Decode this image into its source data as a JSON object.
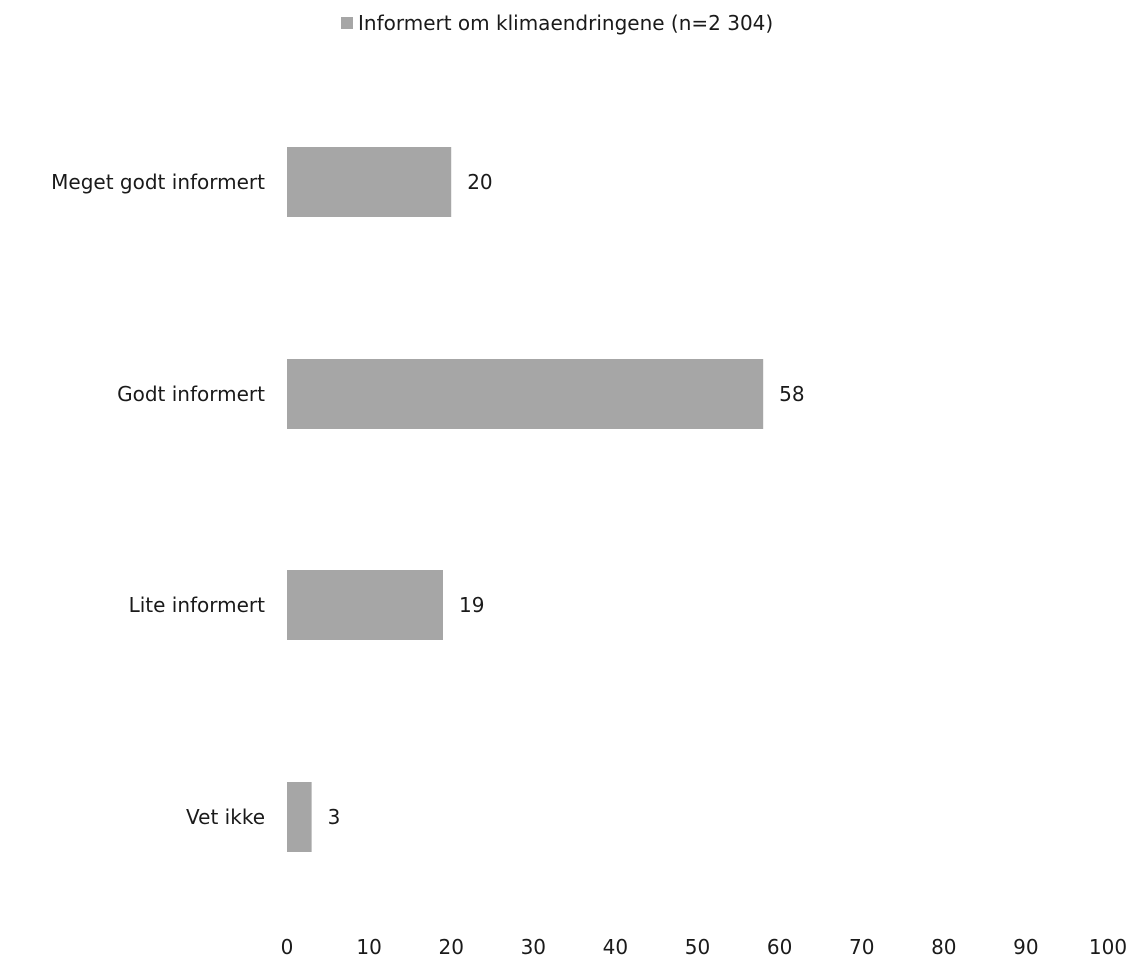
{
  "chart_data": {
    "type": "bar",
    "orientation": "horizontal",
    "categories": [
      "Meget godt informert",
      "Godt informert",
      "Lite informert",
      "Vet ikke"
    ],
    "series": [
      {
        "name": "Informert om klimaendringene (n=2 304)",
        "values": [
          20,
          58,
          19,
          3
        ],
        "color": "#a6a6a6"
      }
    ],
    "data_labels": true,
    "xlim": [
      0,
      100
    ],
    "x_ticks": [
      0,
      10,
      20,
      30,
      40,
      50,
      60,
      70,
      80,
      90,
      100
    ],
    "grid": false,
    "legend_position": "top"
  }
}
